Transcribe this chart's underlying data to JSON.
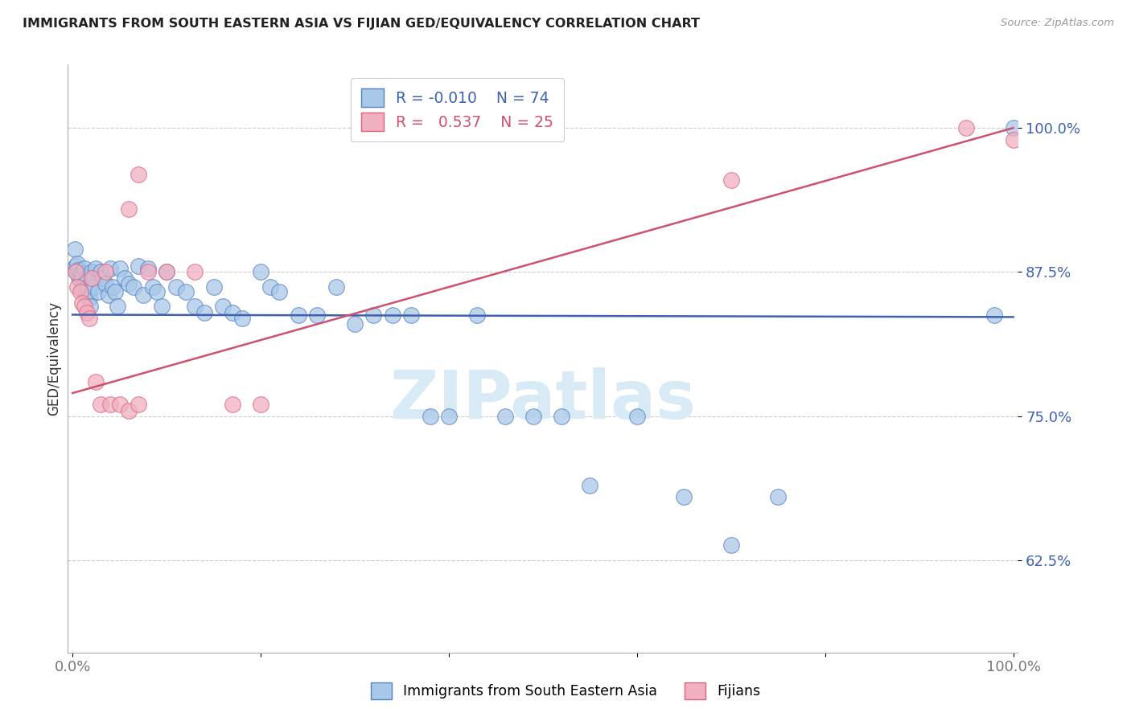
{
  "title": "IMMIGRANTS FROM SOUTH EASTERN ASIA VS FIJIAN GED/EQUIVALENCY CORRELATION CHART",
  "source": "Source: ZipAtlas.com",
  "ylabel": "GED/Equivalency",
  "yticks": [
    0.625,
    0.75,
    0.875,
    1.0
  ],
  "ytick_labels": [
    "62.5%",
    "75.0%",
    "87.5%",
    "100.0%"
  ],
  "ymin": 0.545,
  "ymax": 1.055,
  "xmin": -0.005,
  "xmax": 1.005,
  "blue_R": -0.01,
  "blue_N": 74,
  "pink_R": 0.537,
  "pink_N": 25,
  "blue_label": "Immigrants from South Eastern Asia",
  "pink_label": "Fijians",
  "blue_color": "#a8c8e8",
  "pink_color": "#f0b0c0",
  "blue_edge_color": "#5580c0",
  "pink_edge_color": "#e06080",
  "blue_line_color": "#4060b0",
  "pink_line_color": "#d05070",
  "watermark_color": "#d8eaf5",
  "watermark": "ZIPatlas",
  "blue_line_y0": 0.838,
  "blue_line_y1": 0.836,
  "pink_line_y0": 0.77,
  "pink_line_y1": 1.0,
  "blue_x": [
    0.002,
    0.003,
    0.004,
    0.005,
    0.006,
    0.007,
    0.008,
    0.009,
    0.01,
    0.011,
    0.012,
    0.013,
    0.014,
    0.015,
    0.016,
    0.017,
    0.018,
    0.019,
    0.02,
    0.021,
    0.022,
    0.023,
    0.025,
    0.027,
    0.03,
    0.032,
    0.035,
    0.038,
    0.04,
    0.043,
    0.045,
    0.048,
    0.05,
    0.055,
    0.06,
    0.065,
    0.07,
    0.075,
    0.08,
    0.085,
    0.09,
    0.095,
    0.1,
    0.11,
    0.12,
    0.13,
    0.14,
    0.15,
    0.16,
    0.17,
    0.18,
    0.2,
    0.21,
    0.22,
    0.24,
    0.26,
    0.28,
    0.3,
    0.32,
    0.34,
    0.36,
    0.38,
    0.4,
    0.43,
    0.46,
    0.49,
    0.52,
    0.55,
    0.6,
    0.65,
    0.7,
    0.75,
    0.98,
    1.0
  ],
  "blue_y": [
    0.895,
    0.88,
    0.875,
    0.882,
    0.877,
    0.87,
    0.868,
    0.874,
    0.86,
    0.872,
    0.865,
    0.878,
    0.855,
    0.87,
    0.862,
    0.858,
    0.852,
    0.845,
    0.875,
    0.865,
    0.87,
    0.862,
    0.878,
    0.858,
    0.875,
    0.87,
    0.865,
    0.855,
    0.878,
    0.862,
    0.858,
    0.845,
    0.878,
    0.87,
    0.865,
    0.862,
    0.88,
    0.855,
    0.878,
    0.862,
    0.858,
    0.845,
    0.875,
    0.862,
    0.858,
    0.845,
    0.84,
    0.862,
    0.845,
    0.84,
    0.835,
    0.875,
    0.862,
    0.858,
    0.838,
    0.838,
    0.862,
    0.83,
    0.838,
    0.838,
    0.838,
    0.75,
    0.75,
    0.838,
    0.75,
    0.75,
    0.75,
    0.69,
    0.75,
    0.68,
    0.638,
    0.68,
    0.838,
    1.0
  ],
  "pink_x": [
    0.003,
    0.005,
    0.008,
    0.01,
    0.013,
    0.015,
    0.018,
    0.02,
    0.025,
    0.03,
    0.035,
    0.04,
    0.05,
    0.06,
    0.07,
    0.08,
    0.1,
    0.13,
    0.17,
    0.2,
    0.06,
    0.07,
    0.7,
    0.95,
    1.0
  ],
  "pink_y": [
    0.875,
    0.862,
    0.858,
    0.848,
    0.845,
    0.84,
    0.835,
    0.87,
    0.78,
    0.76,
    0.875,
    0.76,
    0.76,
    0.755,
    0.76,
    0.875,
    0.875,
    0.875,
    0.76,
    0.76,
    0.93,
    0.96,
    0.955,
    1.0,
    0.99
  ]
}
